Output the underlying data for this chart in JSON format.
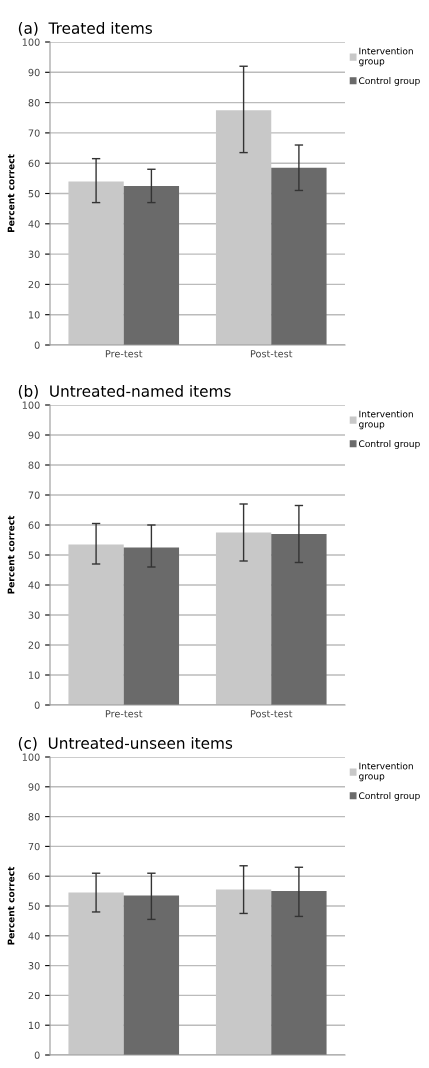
{
  "chart_data": [
    {
      "type": "bar",
      "title": "(a)  Treated items",
      "ylabel": "Percent correct",
      "categories": [
        "Pre-test",
        "Post-test"
      ],
      "series": [
        {
          "name": "Intervention group",
          "color": "#c8c8c8",
          "values": [
            54,
            77.5
          ],
          "errors": [
            [
              47,
              61.5
            ],
            [
              63.5,
              92
            ]
          ]
        },
        {
          "name": "Control group",
          "color": "#6a6a6a",
          "values": [
            52.5,
            58.5
          ],
          "errors": [
            [
              47,
              58
            ],
            [
              51,
              66
            ]
          ]
        }
      ],
      "ylim": [
        0,
        100
      ],
      "yticks": [
        0,
        10,
        20,
        30,
        40,
        50,
        60,
        70,
        80,
        90,
        100
      ],
      "grid": "y",
      "legend": "top right"
    },
    {
      "type": "bar",
      "title": "(b)  Untreated-named items",
      "ylabel": "Percent correct",
      "categories": [
        "Pre-test",
        "Post-test"
      ],
      "series": [
        {
          "name": "Intervention group",
          "color": "#c8c8c8",
          "values": [
            53.5,
            57.5
          ],
          "errors": [
            [
              47,
              60.5
            ],
            [
              48,
              67
            ]
          ]
        },
        {
          "name": "Control group",
          "color": "#6a6a6a",
          "values": [
            52.5,
            57
          ],
          "errors": [
            [
              46,
              60
            ],
            [
              47.5,
              66.5
            ]
          ]
        }
      ],
      "ylim": [
        0,
        100
      ],
      "yticks": [
        0,
        10,
        20,
        30,
        40,
        50,
        60,
        70,
        80,
        90,
        100
      ],
      "grid": "y",
      "legend": "top right"
    },
    {
      "type": "bar",
      "title": "(c)  Untreated-unseen items",
      "ylabel": "Percent correct",
      "categories": [
        null,
        null
      ],
      "series": [
        {
          "name": "Intervention group",
          "color": "#c8c8c8",
          "values": [
            54.5,
            55.5
          ],
          "errors": [
            [
              48,
              61
            ],
            [
              47.5,
              63.5
            ]
          ]
        },
        {
          "name": "Control group",
          "color": "#6a6a6a",
          "values": [
            53.5,
            55
          ],
          "errors": [
            [
              45.5,
              61
            ],
            [
              46.5,
              63
            ]
          ]
        }
      ],
      "ylim": [
        0,
        100
      ],
      "yticks": [
        0,
        10,
        20,
        30,
        40,
        50,
        60,
        70,
        80,
        90,
        100
      ],
      "grid": "y",
      "legend": "top right"
    }
  ]
}
